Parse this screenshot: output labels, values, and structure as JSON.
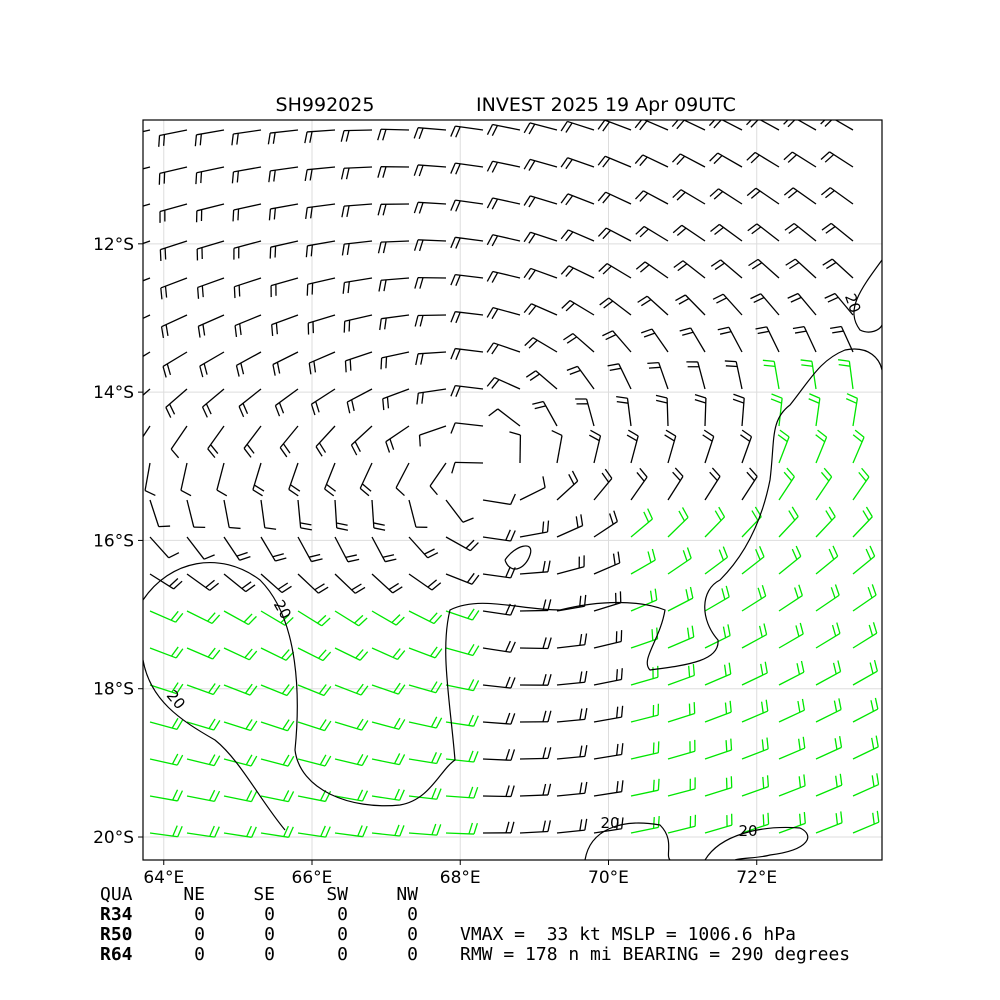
{
  "title": {
    "left": "SH992025",
    "right": "INVEST 2025 19 Apr 09UTC"
  },
  "map": {
    "xlim": [
      63.72,
      73.69
    ],
    "ylim": [
      -20.31,
      -10.33
    ],
    "xticks": [
      {
        "value": 64,
        "label": "64°E"
      },
      {
        "value": 66,
        "label": "66°E"
      },
      {
        "value": 68,
        "label": "68°E"
      },
      {
        "value": 70,
        "label": "70°E"
      },
      {
        "value": 72,
        "label": "72°E"
      }
    ],
    "yticks": [
      {
        "value": -12,
        "label": "12°S"
      },
      {
        "value": -14,
        "label": "14°S"
      },
      {
        "value": -16,
        "label": "16°S"
      },
      {
        "value": -18,
        "label": "18°S"
      },
      {
        "value": -20,
        "label": "20°S"
      }
    ],
    "contour_labels": [
      "20",
      "20",
      "20",
      "20",
      "20"
    ]
  },
  "table": {
    "header": [
      "QUA",
      "NE",
      "SE",
      "SW",
      "NW"
    ],
    "rows": [
      [
        "R34",
        "0",
        "0",
        "0",
        "0"
      ],
      [
        "R50",
        "0",
        "0",
        "0",
        "0"
      ],
      [
        "R64",
        "0",
        "0",
        "0",
        "0"
      ]
    ]
  },
  "summary": [
    "VMAX =  33 kt MSLP = 1006.6 hPa",
    "RMW = 178 n mi BEARING = 290 degrees"
  ]
}
